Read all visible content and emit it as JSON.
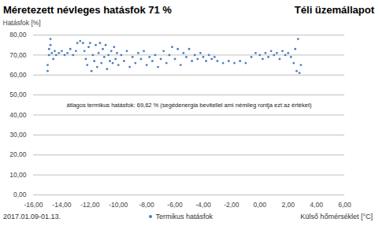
{
  "chart_data": {
    "type": "scatter",
    "title": "Méretezett névleges hatásfok 71 %",
    "subtitle": "Téli üzemállapot",
    "caption": "2017.01.09-01.13.",
    "annotation": "átlagos termikus hatásfok: 69,62 % (segédenergia bevitellel ami némileg rontja ezt az értéket)",
    "xlabel": "Külső hőmérséklet [°C]",
    "ylabel": "Hatásfok [%]",
    "xlim": [
      -16,
      6
    ],
    "ylim": [
      0,
      80
    ],
    "xticks": [
      {
        "value": -16,
        "label": "-16,00"
      },
      {
        "value": -14,
        "label": "-14,00"
      },
      {
        "value": -12,
        "label": "-12,00"
      },
      {
        "value": -10,
        "label": "-10,00"
      },
      {
        "value": -8,
        "label": "-8,00"
      },
      {
        "value": -6,
        "label": "-6,00"
      },
      {
        "value": -4,
        "label": "-4,00"
      },
      {
        "value": -2,
        "label": "-2,00"
      },
      {
        "value": 0,
        "label": "0,00"
      },
      {
        "value": 2,
        "label": "2,00"
      },
      {
        "value": 4,
        "label": "4,00"
      },
      {
        "value": 6,
        "label": "6,00"
      }
    ],
    "yticks": [
      {
        "value": 0,
        "label": "0,00"
      },
      {
        "value": 10,
        "label": "10,00"
      },
      {
        "value": 20,
        "label": "20,00"
      },
      {
        "value": 30,
        "label": "30,00"
      },
      {
        "value": 40,
        "label": "40,00"
      },
      {
        "value": 50,
        "label": "50,00"
      },
      {
        "value": 60,
        "label": "60,00"
      },
      {
        "value": 70,
        "label": "70,00"
      },
      {
        "value": 80,
        "label": "80,00"
      }
    ],
    "grid": true,
    "legend": "bottom",
    "x": [
      -15,
      -15,
      -14.9,
      -14.9,
      -14.8,
      -14.8,
      -14.7,
      -14.6,
      -14.5,
      -14.4,
      -14.2,
      -14,
      -13.8,
      -13.6,
      -13.4,
      -13.2,
      -13,
      -12.9,
      -12.7,
      -12.5,
      -12.4,
      -12.3,
      -12.2,
      -12.1,
      -12,
      -11.9,
      -11.8,
      -11.7,
      -11.6,
      -11.5,
      -11.4,
      -11.3,
      -11.2,
      -11.1,
      -11,
      -10.9,
      -10.8,
      -10.7,
      -10.6,
      -10.5,
      -10.4,
      -10.3,
      -10.2,
      -10.1,
      -10,
      -9.8,
      -9.6,
      -9.4,
      -9.2,
      -9,
      -8.8,
      -8.6,
      -8.4,
      -8.2,
      -8,
      -7.8,
      -7.6,
      -7.4,
      -7.2,
      -7,
      -6.8,
      -6.6,
      -6.4,
      -6.2,
      -6,
      -5.8,
      -5.6,
      -5.4,
      -5.2,
      -5,
      -4.8,
      -4.6,
      -4.4,
      -4.2,
      -4,
      -3.8,
      -3.6,
      -3.4,
      -3.2,
      -3,
      -2.6,
      -2.2,
      -1.8,
      -1.4,
      -1,
      -0.6,
      -0.3,
      0,
      0.2,
      0.4,
      0.6,
      0.8,
      1,
      1.2,
      1.4,
      1.6,
      1.8,
      2,
      2.2,
      2.4,
      2.5,
      2.6,
      2.7,
      2.8,
      2.9
    ],
    "series": [
      {
        "name": "Termikus hatásfok",
        "color": "#4a7ebb",
        "marker": "circle",
        "values": [
          62,
          65,
          70,
          73,
          75,
          78,
          71,
          68,
          72,
          70,
          71,
          72,
          70,
          71,
          73,
          70,
          72,
          76,
          77,
          76,
          72,
          68,
          65,
          74,
          76,
          62,
          70,
          67,
          75,
          64,
          71,
          76,
          66,
          73,
          69,
          75,
          63,
          70,
          67,
          72,
          66,
          74,
          68,
          71,
          65,
          70,
          67,
          72,
          64,
          69,
          66,
          71,
          68,
          72,
          65,
          69,
          67,
          70,
          64,
          68,
          72,
          66,
          70,
          74,
          68,
          73,
          65,
          71,
          69,
          73,
          67,
          70,
          68,
          71,
          69,
          67,
          70,
          68,
          69,
          67,
          66,
          67,
          66,
          67,
          66,
          69,
          71,
          70,
          68,
          71,
          69,
          72,
          70,
          71,
          68,
          72,
          70,
          71,
          69,
          66,
          73,
          62,
          78,
          61,
          65
        ]
      }
    ]
  }
}
